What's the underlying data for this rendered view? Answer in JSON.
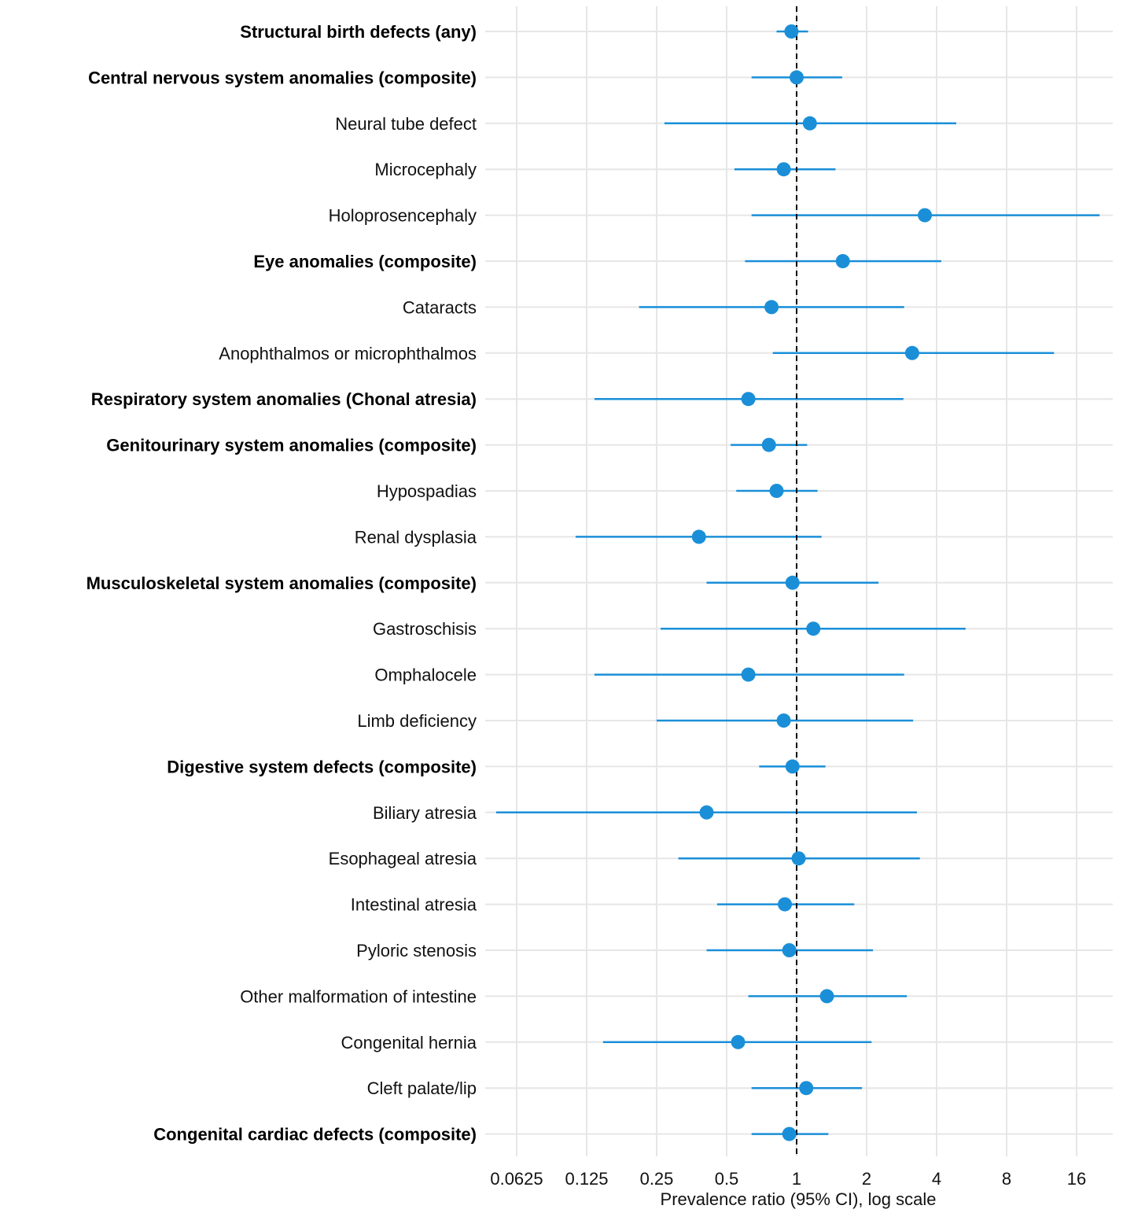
{
  "chart_data": {
    "type": "forest",
    "title": "",
    "xlabel": "Prevalence ratio (95% CI), log scale",
    "ylabel": "",
    "x_scale": "log2",
    "xlim": [
      0.046,
      22.9
    ],
    "x_ticks": [
      0.0625,
      0.125,
      0.25,
      0.5,
      1,
      2,
      4,
      8,
      16
    ],
    "x_tick_labels": [
      "0.0625",
      "0.125",
      "0.25",
      "0.5",
      "1",
      "2",
      "4",
      "8",
      "16"
    ],
    "reference_line": 1,
    "grid": true,
    "colors": {
      "point": "#1a8fd8",
      "grid": "#e6e6e6",
      "reference": "#000000"
    },
    "rows": [
      {
        "label": "Structural birth defects (any)",
        "bold": true,
        "pr": 0.95,
        "lo": 0.82,
        "hi": 1.12
      },
      {
        "label": "Central nervous system anomalies (composite)",
        "bold": true,
        "pr": 1.0,
        "lo": 0.64,
        "hi": 1.57
      },
      {
        "label": "Neural tube defect",
        "bold": false,
        "pr": 1.14,
        "lo": 0.27,
        "hi": 4.86
      },
      {
        "label": "Microcephaly",
        "bold": false,
        "pr": 0.88,
        "lo": 0.54,
        "hi": 1.47
      },
      {
        "label": "Holoprosencephaly",
        "bold": false,
        "pr": 3.56,
        "lo": 0.64,
        "hi": 20.1
      },
      {
        "label": "Eye anomalies (composite)",
        "bold": true,
        "pr": 1.58,
        "lo": 0.6,
        "hi": 4.19
      },
      {
        "label": "Cataracts",
        "bold": false,
        "pr": 0.78,
        "lo": 0.21,
        "hi": 2.9
      },
      {
        "label": "Anophthalmos or microphthalmos",
        "bold": false,
        "pr": 3.14,
        "lo": 0.79,
        "hi": 12.8
      },
      {
        "label": "Respiratory system anomalies (Chonal atresia)",
        "bold": true,
        "pr": 0.62,
        "lo": 0.135,
        "hi": 2.88
      },
      {
        "label": "Genitourinary system anomalies (composite)",
        "bold": true,
        "pr": 0.76,
        "lo": 0.52,
        "hi": 1.11
      },
      {
        "label": "Hypospadias",
        "bold": false,
        "pr": 0.82,
        "lo": 0.55,
        "hi": 1.23
      },
      {
        "label": "Renal dysplasia",
        "bold": false,
        "pr": 0.38,
        "lo": 0.112,
        "hi": 1.28
      },
      {
        "label": "Musculoskeletal system anomalies (composite)",
        "bold": true,
        "pr": 0.96,
        "lo": 0.41,
        "hi": 2.25
      },
      {
        "label": "Gastroschisis",
        "bold": false,
        "pr": 1.18,
        "lo": 0.26,
        "hi": 5.33
      },
      {
        "label": "Omphalocele",
        "bold": false,
        "pr": 0.62,
        "lo": 0.135,
        "hi": 2.9
      },
      {
        "label": "Limb deficiency",
        "bold": false,
        "pr": 0.88,
        "lo": 0.25,
        "hi": 3.17
      },
      {
        "label": "Digestive system defects (composite)",
        "bold": true,
        "pr": 0.96,
        "lo": 0.69,
        "hi": 1.33
      },
      {
        "label": "Biliary atresia",
        "bold": false,
        "pr": 0.41,
        "lo": 0.051,
        "hi": 3.29
      },
      {
        "label": "Esophageal atresia",
        "bold": false,
        "pr": 1.02,
        "lo": 0.31,
        "hi": 3.39
      },
      {
        "label": "Intestinal atresia",
        "bold": false,
        "pr": 0.89,
        "lo": 0.455,
        "hi": 1.77
      },
      {
        "label": "Pyloric stenosis",
        "bold": false,
        "pr": 0.93,
        "lo": 0.41,
        "hi": 2.13
      },
      {
        "label": "Other malformation of intestine",
        "bold": false,
        "pr": 1.35,
        "lo": 0.62,
        "hi": 2.98
      },
      {
        "label": "Congenital hernia",
        "bold": false,
        "pr": 0.56,
        "lo": 0.147,
        "hi": 2.1
      },
      {
        "label": "Cleft palate/lip",
        "bold": false,
        "pr": 1.1,
        "lo": 0.64,
        "hi": 1.91
      },
      {
        "label": "Congenital cardiac defects (composite)",
        "bold": true,
        "pr": 0.93,
        "lo": 0.64,
        "hi": 1.37
      }
    ]
  }
}
